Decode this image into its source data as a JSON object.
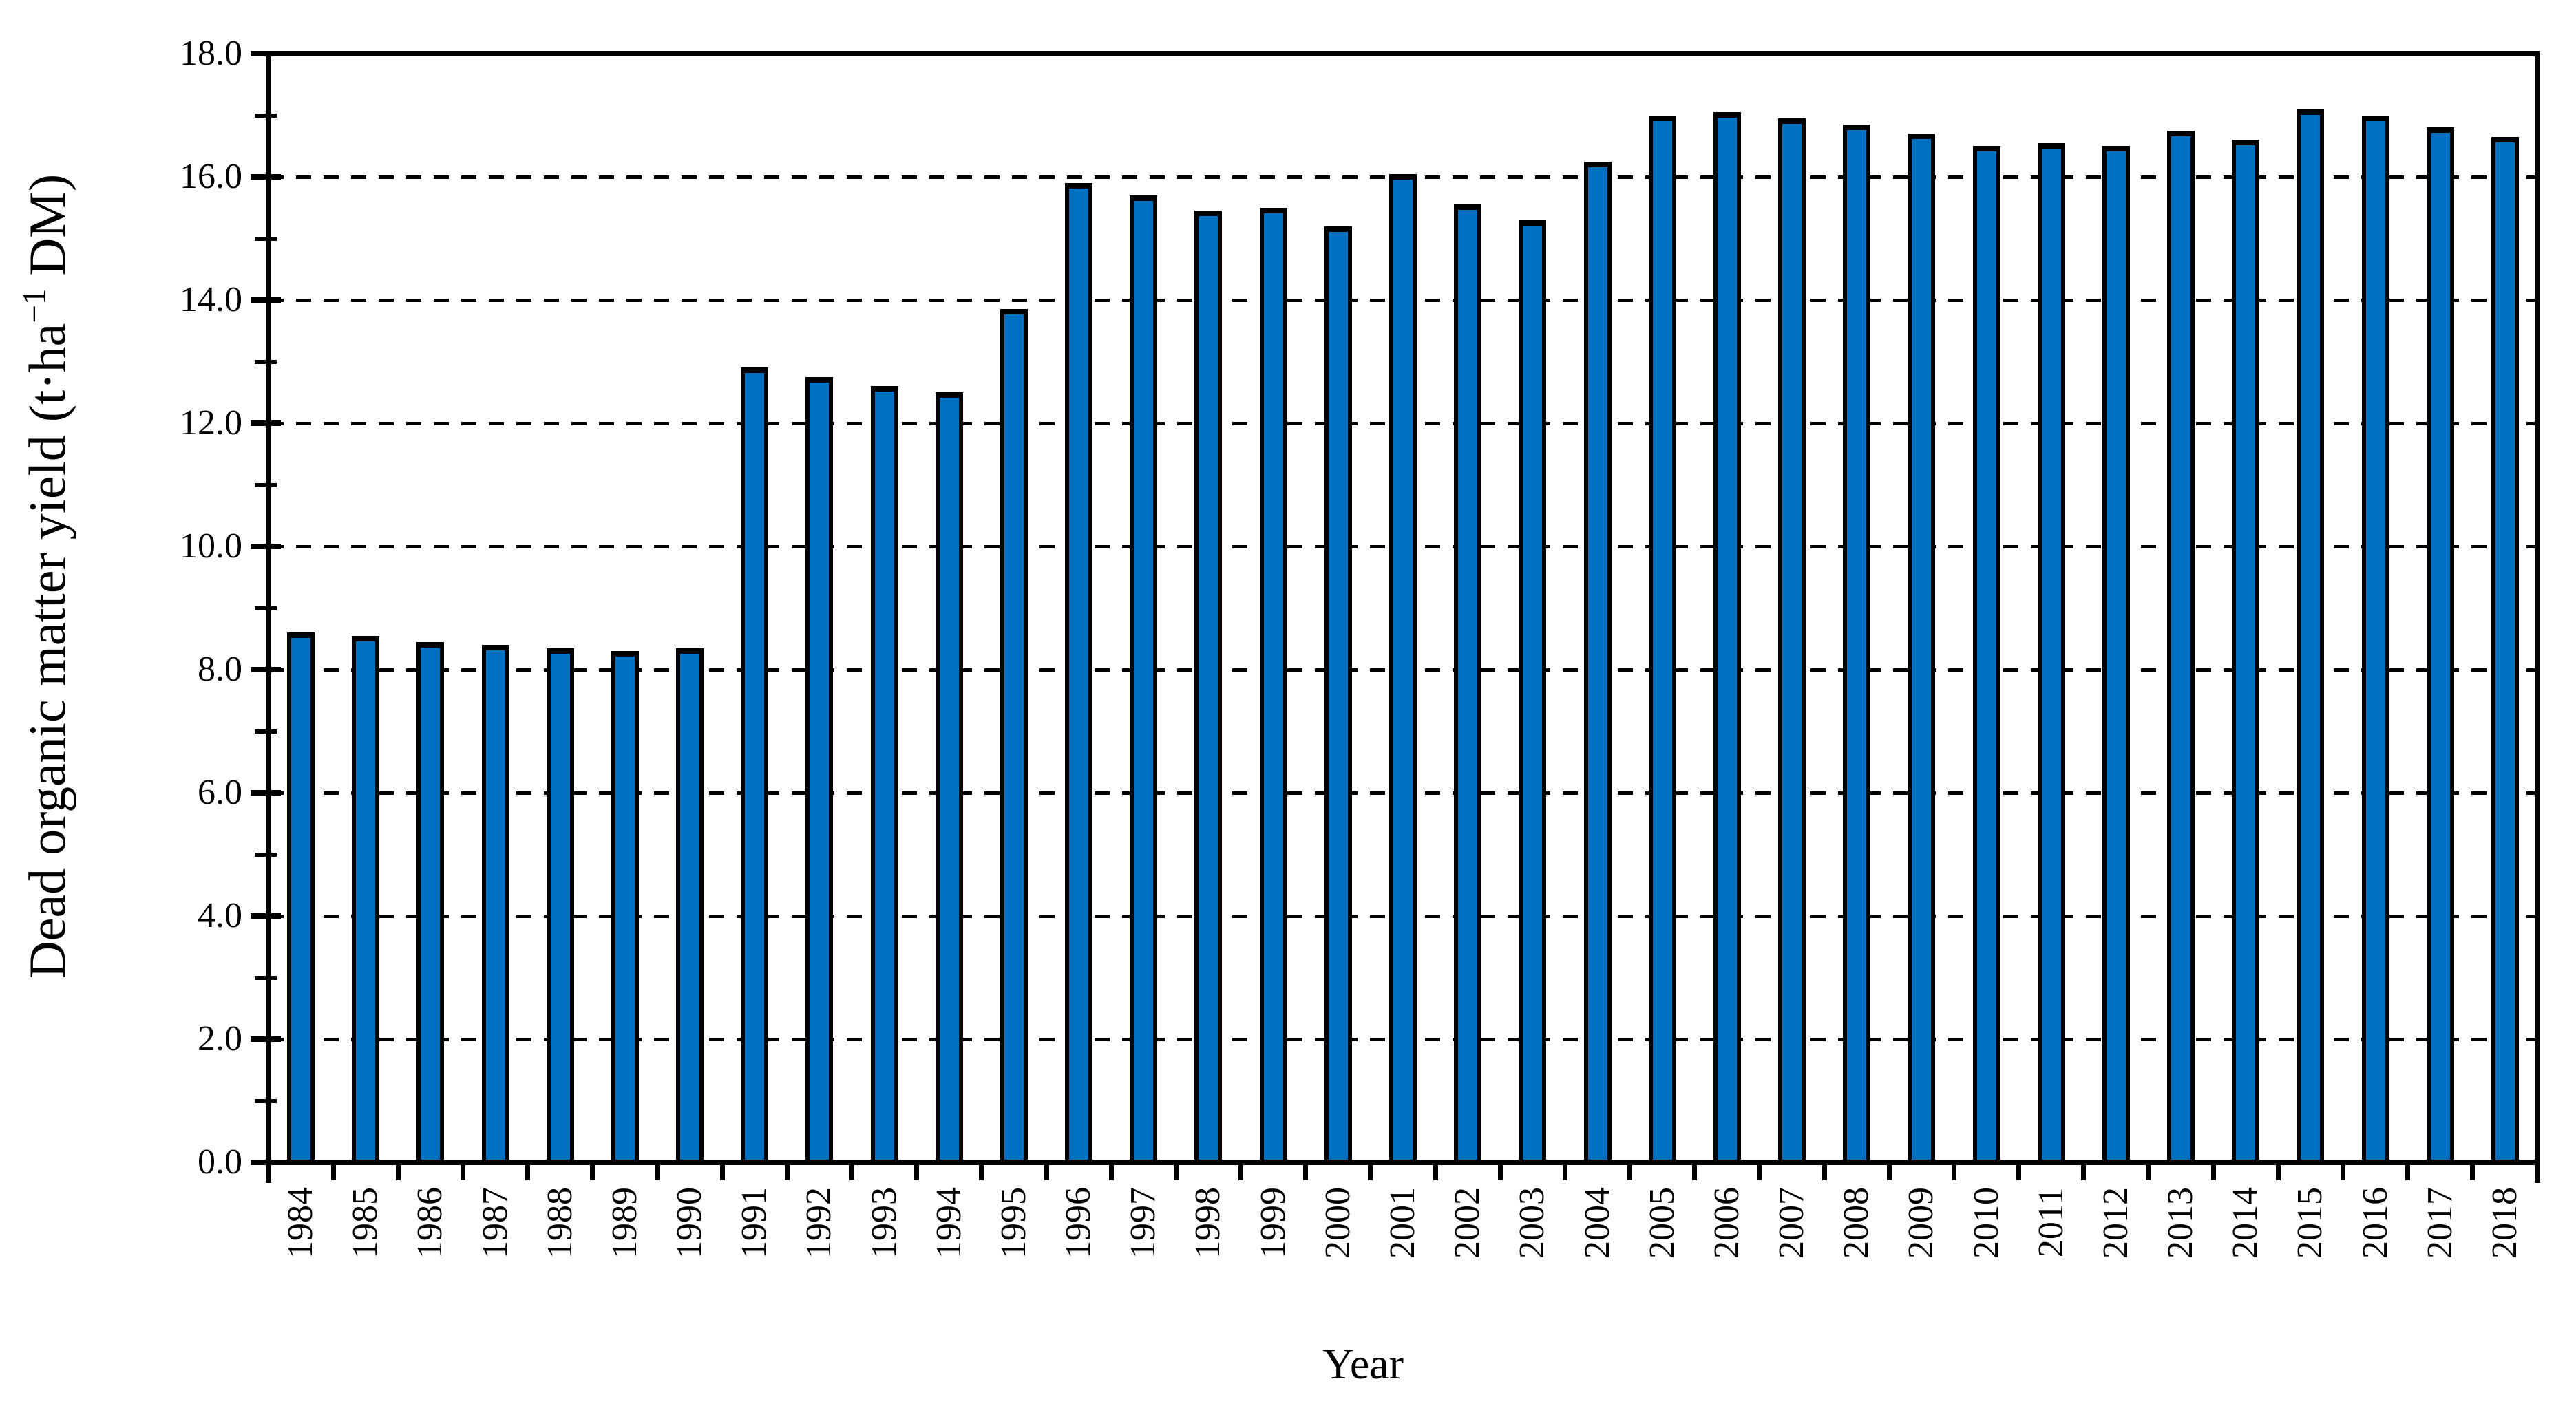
{
  "chart_data": {
    "type": "bar",
    "title": "",
    "xlabel": "Year",
    "ylabel": "Dead organic matter yield (t·ha−1 DM)",
    "ylabel_parts": {
      "pre": "Dead organic matter yield (t·ha",
      "sup": "−1",
      "post": " DM)"
    },
    "categories": [
      "1984",
      "1985",
      "1986",
      "1987",
      "1988",
      "1989",
      "1990",
      "1991",
      "1992",
      "1993",
      "1994",
      "1995",
      "1996",
      "1997",
      "1998",
      "1999",
      "2000",
      "2001",
      "2002",
      "2003",
      "2004",
      "2005",
      "2006",
      "2007",
      "2008",
      "2009",
      "2010",
      "2011",
      "2012",
      "2013",
      "2014",
      "2015",
      "2016",
      "2017",
      "2018"
    ],
    "values": [
      8.6,
      8.55,
      8.45,
      8.4,
      8.35,
      8.3,
      8.35,
      12.9,
      12.75,
      12.6,
      12.5,
      13.85,
      15.9,
      15.7,
      15.45,
      15.5,
      15.2,
      16.05,
      15.55,
      15.3,
      16.25,
      17.0,
      17.05,
      16.95,
      16.85,
      16.7,
      16.5,
      16.55,
      16.5,
      16.75,
      16.6,
      17.1,
      17.0,
      16.8,
      16.65
    ],
    "ylim": [
      0,
      18
    ],
    "ytick_major_step": 2,
    "ytick_minor_step": 1,
    "ytick_labels": [
      "0.0",
      "2.0",
      "4.0",
      "6.0",
      "8.0",
      "10.0",
      "12.0",
      "14.0",
      "16.0",
      "18.0"
    ],
    "grid": "horizontal dashed at major ticks",
    "legend": "none",
    "bar_fill_color": "#0070C0",
    "bar_border_color": "#000000",
    "axis_color": "#000000",
    "background_color": "#FFFFFF"
  }
}
